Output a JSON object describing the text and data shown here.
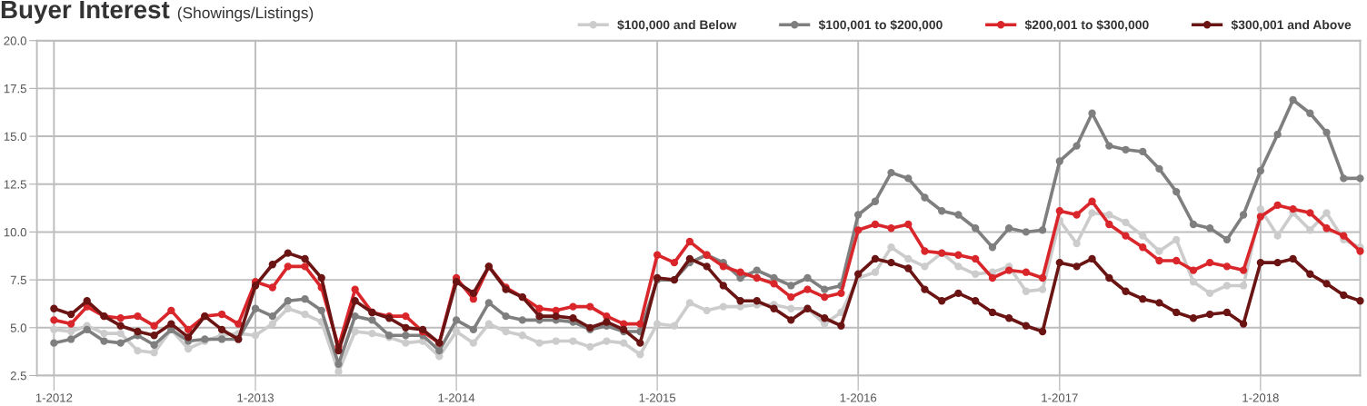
{
  "chart_data": {
    "type": "line",
    "title": "Buyer Interest",
    "subtitle": "(Showings/Listings)",
    "x": [
      "2012-01",
      "2012-02",
      "2012-03",
      "2012-04",
      "2012-05",
      "2012-06",
      "2012-07",
      "2012-08",
      "2012-09",
      "2012-10",
      "2012-11",
      "2012-12",
      "2013-01",
      "2013-02",
      "2013-03",
      "2013-04",
      "2013-05",
      "2013-06",
      "2013-07",
      "2013-08",
      "2013-09",
      "2013-10",
      "2013-11",
      "2013-12",
      "2014-01",
      "2014-02",
      "2014-03",
      "2014-04",
      "2014-05",
      "2014-06",
      "2014-07",
      "2014-08",
      "2014-09",
      "2014-10",
      "2014-11",
      "2014-12",
      "2015-01",
      "2015-02",
      "2015-03",
      "2015-04",
      "2015-05",
      "2015-06",
      "2015-07",
      "2015-08",
      "2015-09",
      "2015-10",
      "2015-11",
      "2015-12",
      "2016-01",
      "2016-02",
      "2016-03",
      "2016-04",
      "2016-05",
      "2016-06",
      "2016-07",
      "2016-08",
      "2016-09",
      "2016-10",
      "2016-11",
      "2016-12",
      "2017-01",
      "2017-02",
      "2017-03",
      "2017-04",
      "2017-05",
      "2017-06",
      "2017-07",
      "2017-08",
      "2017-09",
      "2017-10",
      "2017-11",
      "2017-12",
      "2018-01",
      "2018-02",
      "2018-03",
      "2018-04",
      "2018-05",
      "2018-06",
      "2018-07"
    ],
    "series": [
      {
        "name": "$100,000 and Below",
        "color": "#cccccc",
        "values": [
          4.9,
          4.8,
          5.1,
          4.7,
          4.7,
          3.8,
          3.7,
          4.9,
          3.9,
          4.3,
          4.6,
          4.7,
          4.6,
          5.2,
          6.0,
          5.7,
          5.3,
          2.7,
          4.8,
          4.7,
          4.5,
          4.2,
          4.3,
          3.5,
          4.8,
          4.2,
          5.2,
          4.8,
          4.6,
          4.2,
          4.3,
          4.3,
          4.0,
          4.3,
          4.2,
          3.6,
          5.2,
          5.1,
          6.3,
          5.9,
          6.1,
          6.1,
          6.2,
          6.2,
          6.0,
          6.0,
          5.2,
          5.8,
          7.6,
          7.9,
          9.2,
          8.6,
          8.2,
          8.9,
          8.2,
          7.8,
          7.9,
          8.2,
          6.9,
          7.0,
          10.6,
          9.4,
          11.0,
          10.9,
          10.5,
          9.8,
          9.0,
          9.6,
          7.4,
          6.8,
          7.2,
          7.2,
          11.2,
          9.8,
          11.0,
          10.1,
          11.0,
          9.6,
          9.2
        ]
      },
      {
        "name": "$100,001 to $200,000",
        "color": "#7f7f7f",
        "values": [
          4.2,
          4.4,
          4.9,
          4.3,
          4.2,
          4.6,
          4.1,
          4.9,
          4.3,
          4.4,
          4.4,
          4.4,
          6.0,
          5.6,
          6.4,
          6.5,
          5.9,
          3.1,
          5.6,
          5.4,
          4.6,
          4.6,
          4.6,
          3.8,
          5.4,
          4.9,
          6.3,
          5.6,
          5.4,
          5.4,
          5.4,
          5.3,
          4.9,
          5.1,
          4.8,
          4.8,
          7.5,
          7.5,
          8.4,
          8.8,
          8.4,
          7.6,
          8.0,
          7.6,
          7.2,
          7.6,
          7.0,
          7.2,
          10.9,
          11.6,
          13.1,
          12.8,
          11.8,
          11.1,
          10.9,
          10.2,
          9.2,
          10.2,
          10.0,
          10.1,
          13.7,
          14.5,
          16.2,
          14.5,
          14.3,
          14.2,
          13.3,
          12.1,
          10.4,
          10.2,
          9.6,
          10.9,
          13.2,
          15.1,
          16.9,
          16.2,
          15.2,
          12.8,
          12.8
        ]
      },
      {
        "name": "$200,001 to $300,000",
        "color": "#d9262b",
        "values": [
          5.4,
          5.2,
          6.1,
          5.6,
          5.5,
          5.6,
          5.1,
          5.9,
          4.9,
          5.6,
          5.7,
          5.2,
          7.4,
          7.1,
          8.2,
          8.2,
          7.1,
          4.0,
          7.0,
          5.8,
          5.6,
          5.6,
          4.8,
          4.2,
          7.6,
          6.5,
          8.2,
          7.1,
          6.6,
          6.0,
          5.9,
          6.1,
          6.1,
          5.6,
          5.2,
          5.2,
          8.8,
          8.4,
          9.5,
          8.8,
          8.2,
          7.9,
          7.6,
          7.3,
          6.6,
          7.0,
          6.6,
          6.8,
          10.1,
          10.4,
          10.2,
          10.4,
          9.0,
          8.9,
          8.8,
          8.6,
          7.6,
          8.0,
          7.9,
          7.6,
          11.1,
          10.9,
          11.6,
          10.4,
          9.8,
          9.2,
          8.5,
          8.5,
          8.0,
          8.4,
          8.2,
          8.0,
          10.8,
          11.4,
          11.2,
          11.0,
          10.2,
          9.8,
          9.0
        ]
      },
      {
        "name": "$300,001 and Above",
        "color": "#6b1414",
        "values": [
          6.0,
          5.7,
          6.4,
          5.6,
          5.1,
          4.8,
          4.6,
          5.2,
          4.5,
          5.6,
          4.9,
          4.4,
          7.2,
          8.3,
          8.9,
          8.6,
          7.6,
          3.8,
          6.4,
          5.8,
          5.5,
          5.0,
          4.9,
          4.2,
          7.4,
          6.8,
          8.2,
          7.0,
          6.6,
          5.6,
          5.6,
          5.5,
          5.0,
          5.3,
          4.9,
          4.2,
          7.6,
          7.5,
          8.6,
          8.2,
          7.2,
          6.4,
          6.4,
          6.0,
          5.4,
          6.0,
          5.5,
          5.1,
          7.8,
          8.6,
          8.4,
          8.1,
          7.0,
          6.4,
          6.8,
          6.4,
          5.8,
          5.5,
          5.1,
          4.8,
          8.4,
          8.2,
          8.6,
          7.6,
          6.9,
          6.5,
          6.3,
          5.8,
          5.5,
          5.7,
          5.8,
          5.2,
          8.4,
          8.4,
          8.6,
          7.8,
          7.3,
          6.7,
          6.4
        ]
      }
    ],
    "xlim": [
      "2011-12",
      "2018-07"
    ],
    "xticks": [
      {
        "value": "2012-01",
        "label": "1-2012"
      },
      {
        "value": "2013-01",
        "label": "1-2013"
      },
      {
        "value": "2014-01",
        "label": "1-2014"
      },
      {
        "value": "2015-01",
        "label": "1-2015"
      },
      {
        "value": "2016-01",
        "label": "1-2016"
      },
      {
        "value": "2017-01",
        "label": "1-2017"
      },
      {
        "value": "2018-01",
        "label": "1-2018"
      }
    ],
    "ylim": [
      2.5,
      20
    ],
    "yticks": [
      {
        "value": 2.5,
        "label": "2.5"
      },
      {
        "value": 5,
        "label": "5.0"
      },
      {
        "value": 7.5,
        "label": "7.5"
      },
      {
        "value": 10,
        "label": "10.0"
      },
      {
        "value": 12.5,
        "label": "12.5"
      },
      {
        "value": 15,
        "label": "15.0"
      },
      {
        "value": 17.5,
        "label": "17.5"
      },
      {
        "value": 20,
        "label": "20.0"
      }
    ],
    "grid": true,
    "legend": "top right",
    "marker": "circle",
    "line_style": "solid"
  }
}
